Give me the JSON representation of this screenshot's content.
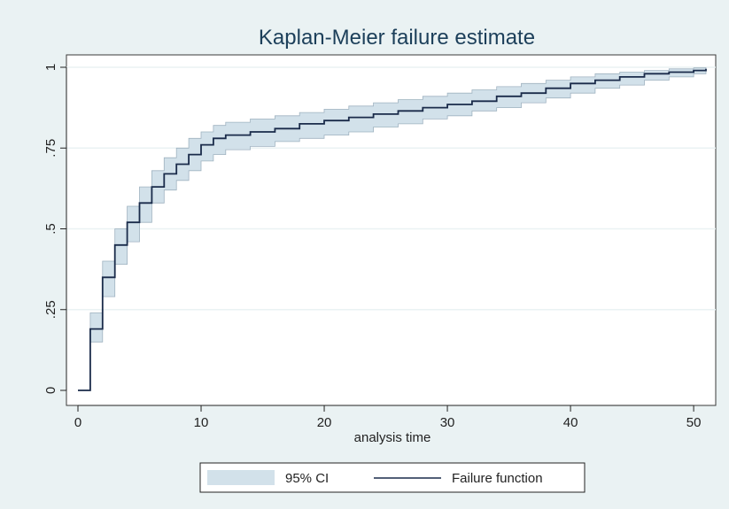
{
  "chart_data": {
    "type": "line",
    "title": "Kaplan-Meier failure estimate",
    "xlabel": "analysis time",
    "ylabel": "",
    "xlim": [
      0,
      51
    ],
    "ylim": [
      0,
      1
    ],
    "x_ticks": [
      0,
      10,
      20,
      30,
      40,
      50
    ],
    "x_tick_labels": [
      "0",
      "10",
      "20",
      "30",
      "40",
      "50"
    ],
    "y_ticks": [
      0,
      0.25,
      0.5,
      0.75,
      1
    ],
    "y_tick_labels": [
      "0",
      ".25",
      ".5",
      ".75",
      "1"
    ],
    "grid": true,
    "legend_position": "bottom",
    "series": [
      {
        "name": "Failure function",
        "kind": "step",
        "color": "#1a2b4a",
        "x": [
          0,
          1,
          2,
          3,
          4,
          5,
          6,
          7,
          8,
          9,
          10,
          11,
          12,
          14,
          16,
          18,
          20,
          22,
          24,
          26,
          28,
          30,
          32,
          34,
          36,
          38,
          40,
          42,
          44,
          46,
          48,
          50,
          51
        ],
        "values": [
          0,
          0.19,
          0.35,
          0.45,
          0.52,
          0.58,
          0.63,
          0.67,
          0.7,
          0.73,
          0.76,
          0.78,
          0.79,
          0.8,
          0.81,
          0.825,
          0.835,
          0.845,
          0.855,
          0.865,
          0.875,
          0.885,
          0.895,
          0.91,
          0.92,
          0.935,
          0.95,
          0.96,
          0.97,
          0.98,
          0.985,
          0.99,
          0.995
        ]
      },
      {
        "name": "95% CI",
        "kind": "band",
        "color": "#d2e1ea",
        "x": [
          0,
          1,
          2,
          3,
          4,
          5,
          6,
          7,
          8,
          9,
          10,
          11,
          12,
          14,
          16,
          18,
          20,
          22,
          24,
          26,
          28,
          30,
          32,
          34,
          36,
          38,
          40,
          42,
          44,
          46,
          48,
          50,
          51
        ],
        "lower": [
          0,
          0.15,
          0.29,
          0.39,
          0.46,
          0.52,
          0.58,
          0.62,
          0.65,
          0.68,
          0.71,
          0.73,
          0.745,
          0.755,
          0.77,
          0.78,
          0.79,
          0.8,
          0.815,
          0.825,
          0.84,
          0.85,
          0.865,
          0.875,
          0.89,
          0.905,
          0.92,
          0.935,
          0.945,
          0.96,
          0.97,
          0.98,
          0.985
        ],
        "upper": [
          0,
          0.24,
          0.4,
          0.5,
          0.57,
          0.63,
          0.68,
          0.72,
          0.75,
          0.78,
          0.8,
          0.82,
          0.83,
          0.84,
          0.85,
          0.86,
          0.87,
          0.88,
          0.89,
          0.9,
          0.91,
          0.92,
          0.93,
          0.94,
          0.95,
          0.96,
          0.97,
          0.98,
          0.985,
          0.99,
          0.995,
          0.998,
          1.0
        ]
      }
    ]
  },
  "legend": {
    "ci_label": "95% CI",
    "line_label": "Failure function"
  },
  "colors": {
    "background": "#eaf2f3",
    "plot_background": "#ffffff",
    "line": "#1a2b4a",
    "band": "#d2e1ea",
    "title": "#1c3f5a",
    "grid": "#eaf2f3"
  }
}
